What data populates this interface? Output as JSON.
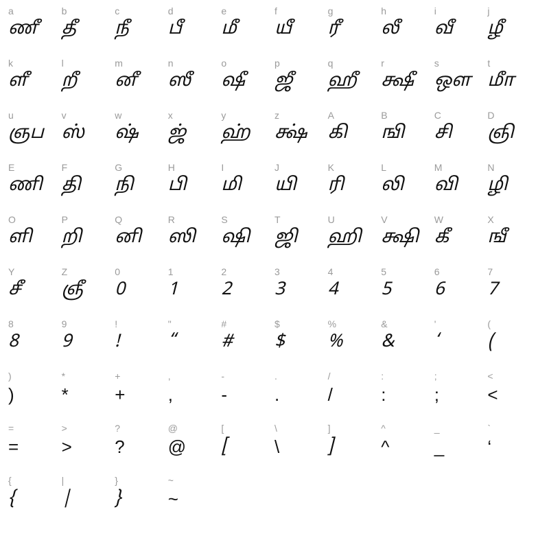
{
  "chart": {
    "type": "glyph-table",
    "columns": 10,
    "background_color": "#ffffff",
    "key_color": "#9a9a9a",
    "glyph_color": "#111111",
    "key_fontsize": 14,
    "glyph_fontsize": 26,
    "cells": [
      {
        "key": "a",
        "glyph": "ணீ",
        "plain": false
      },
      {
        "key": "b",
        "glyph": "தீ",
        "plain": false
      },
      {
        "key": "c",
        "glyph": "நீ",
        "plain": false
      },
      {
        "key": "d",
        "glyph": "பீ",
        "plain": false
      },
      {
        "key": "e",
        "glyph": "மீ",
        "plain": false
      },
      {
        "key": "f",
        "glyph": "யீ",
        "plain": false
      },
      {
        "key": "g",
        "glyph": "ரீ",
        "plain": false
      },
      {
        "key": "h",
        "glyph": "லீ",
        "plain": false
      },
      {
        "key": "i",
        "glyph": "வீ",
        "plain": false
      },
      {
        "key": "j",
        "glyph": "ழீ",
        "plain": false
      },
      {
        "key": "k",
        "glyph": "ளீ",
        "plain": false
      },
      {
        "key": "l",
        "glyph": "றீ",
        "plain": false
      },
      {
        "key": "m",
        "glyph": "னீ",
        "plain": false
      },
      {
        "key": "n",
        "glyph": "ஸீ",
        "plain": false
      },
      {
        "key": "o",
        "glyph": "ஷீ",
        "plain": false
      },
      {
        "key": "p",
        "glyph": "ஜீ",
        "plain": false
      },
      {
        "key": "q",
        "glyph": "ஹீ",
        "plain": false
      },
      {
        "key": "r",
        "glyph": "க்ஷீ",
        "plain": false
      },
      {
        "key": "s",
        "glyph": "ஔ",
        "plain": false
      },
      {
        "key": "t",
        "glyph": "மீா",
        "plain": false
      },
      {
        "key": "u",
        "glyph": "ஞப",
        "plain": false
      },
      {
        "key": "v",
        "glyph": "ஸ்",
        "plain": false
      },
      {
        "key": "w",
        "glyph": "ஷ்",
        "plain": false
      },
      {
        "key": "x",
        "glyph": "ஜ்",
        "plain": false
      },
      {
        "key": "y",
        "glyph": "ஹ்",
        "plain": false
      },
      {
        "key": "z",
        "glyph": "க்ஷ்",
        "plain": false
      },
      {
        "key": "A",
        "glyph": "கி",
        "plain": false
      },
      {
        "key": "B",
        "glyph": "ஙி",
        "plain": false
      },
      {
        "key": "C",
        "glyph": "சி",
        "plain": false
      },
      {
        "key": "D",
        "glyph": "ஞி",
        "plain": false
      },
      {
        "key": "E",
        "glyph": "ணி",
        "plain": false
      },
      {
        "key": "F",
        "glyph": "தி",
        "plain": false
      },
      {
        "key": "G",
        "glyph": "நி",
        "plain": false
      },
      {
        "key": "H",
        "glyph": "பி",
        "plain": false
      },
      {
        "key": "I",
        "glyph": "மி",
        "plain": false
      },
      {
        "key": "J",
        "glyph": "யி",
        "plain": false
      },
      {
        "key": "K",
        "glyph": "ரி",
        "plain": false
      },
      {
        "key": "L",
        "glyph": "லி",
        "plain": false
      },
      {
        "key": "M",
        "glyph": "வி",
        "plain": false
      },
      {
        "key": "N",
        "glyph": "ழி",
        "plain": false
      },
      {
        "key": "O",
        "glyph": "ளி",
        "plain": false
      },
      {
        "key": "P",
        "glyph": "றி",
        "plain": false
      },
      {
        "key": "Q",
        "glyph": "னி",
        "plain": false
      },
      {
        "key": "R",
        "glyph": "ஸி",
        "plain": false
      },
      {
        "key": "S",
        "glyph": "ஷி",
        "plain": false
      },
      {
        "key": "T",
        "glyph": "ஜி",
        "plain": false
      },
      {
        "key": "U",
        "glyph": "ஹி",
        "plain": false
      },
      {
        "key": "V",
        "glyph": "க்ஷி",
        "plain": false
      },
      {
        "key": "W",
        "glyph": "கீ",
        "plain": false
      },
      {
        "key": "X",
        "glyph": "ஙீ",
        "plain": false
      },
      {
        "key": "Y",
        "glyph": "சீ",
        "plain": false
      },
      {
        "key": "Z",
        "glyph": "ஞீ",
        "plain": false
      },
      {
        "key": "0",
        "glyph": "0",
        "plain": false
      },
      {
        "key": "1",
        "glyph": "1",
        "plain": false
      },
      {
        "key": "2",
        "glyph": "2",
        "plain": false
      },
      {
        "key": "3",
        "glyph": "3",
        "plain": false
      },
      {
        "key": "4",
        "glyph": "4",
        "plain": false
      },
      {
        "key": "5",
        "glyph": "5",
        "plain": false
      },
      {
        "key": "6",
        "glyph": "6",
        "plain": false
      },
      {
        "key": "7",
        "glyph": "7",
        "plain": false
      },
      {
        "key": "8",
        "glyph": "8",
        "plain": false
      },
      {
        "key": "9",
        "glyph": "9",
        "plain": false
      },
      {
        "key": "!",
        "glyph": "!",
        "plain": false
      },
      {
        "key": "\"",
        "glyph": "“",
        "plain": false
      },
      {
        "key": "#",
        "glyph": "#",
        "plain": false
      },
      {
        "key": "$",
        "glyph": "$",
        "plain": false
      },
      {
        "key": "%",
        "glyph": "%",
        "plain": false
      },
      {
        "key": "&",
        "glyph": "&",
        "plain": false
      },
      {
        "key": "'",
        "glyph": "‘",
        "plain": false
      },
      {
        "key": "(",
        "glyph": "(",
        "plain": false
      },
      {
        "key": ")",
        "glyph": ")",
        "plain": true
      },
      {
        "key": "*",
        "glyph": "*",
        "plain": true
      },
      {
        "key": "+",
        "glyph": "+",
        "plain": true
      },
      {
        "key": ",",
        "glyph": ",",
        "plain": true
      },
      {
        "key": "-",
        "glyph": "-",
        "plain": true
      },
      {
        "key": ".",
        "glyph": ".",
        "plain": true
      },
      {
        "key": "/",
        "glyph": "/",
        "plain": true
      },
      {
        "key": ":",
        "glyph": ":",
        "plain": true
      },
      {
        "key": ";",
        "glyph": ";",
        "plain": true
      },
      {
        "key": "<",
        "glyph": "<",
        "plain": true
      },
      {
        "key": "=",
        "glyph": "=",
        "plain": true
      },
      {
        "key": ">",
        "glyph": ">",
        "plain": true
      },
      {
        "key": "?",
        "glyph": "?",
        "plain": true
      },
      {
        "key": "@",
        "glyph": "@",
        "plain": true
      },
      {
        "key": "[",
        "glyph": "[",
        "plain": false
      },
      {
        "key": "\\",
        "glyph": "\\",
        "plain": true
      },
      {
        "key": "]",
        "glyph": "]",
        "plain": false
      },
      {
        "key": "^",
        "glyph": "^",
        "plain": true
      },
      {
        "key": "_",
        "glyph": "_",
        "plain": true
      },
      {
        "key": "`",
        "glyph": "‘",
        "plain": true
      },
      {
        "key": "{",
        "glyph": "{",
        "plain": false
      },
      {
        "key": "|",
        "glyph": "|",
        "plain": false
      },
      {
        "key": "}",
        "glyph": "}",
        "plain": false
      },
      {
        "key": "~",
        "glyph": "~",
        "plain": true
      }
    ]
  }
}
